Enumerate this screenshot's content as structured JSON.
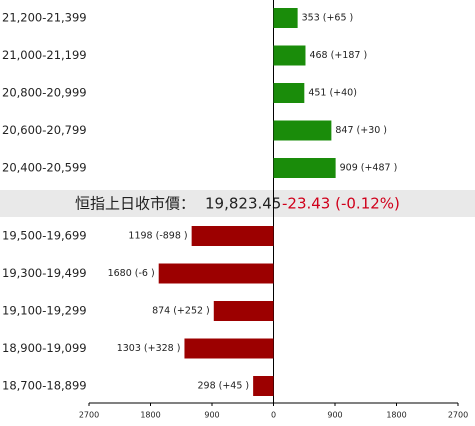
{
  "chart_data": {
    "type": "bar",
    "banner": {
      "label": "恒指上日收市價：",
      "value": "19,823.45",
      "change": "-23.43 (-0.12%)",
      "change_color": "#d0001b"
    },
    "series": [
      {
        "color": "#1a8c0a",
        "direction": "right",
        "categories": [
          "21,200-21,399",
          "21,000-21,199",
          "20,800-20,999",
          "20,600-20,799",
          "20,400-20,599"
        ],
        "values": [
          353,
          468,
          451,
          847,
          909
        ],
        "value_labels": [
          "353 (+65 )",
          "468 (+187 )",
          "451 (+40)",
          "847 (+30 )",
          "909 (+487 )"
        ]
      },
      {
        "color": "#9c0000",
        "direction": "left",
        "categories": [
          "19,500-19,699",
          "19,300-19,499",
          "19,100-19,299",
          "18,900-19,099",
          "18,700-18,899"
        ],
        "values": [
          1198,
          1680,
          874,
          1303,
          298
        ],
        "value_labels": [
          "1198 (-898 )",
          "1680 (-6 )",
          "874 (+252 )",
          "1303 (+328 )",
          "298 (+45 )"
        ]
      }
    ],
    "xlim": [
      -2700,
      2700
    ],
    "xticks": [
      {
        "value": -2700,
        "label": "2700"
      },
      {
        "value": -1800,
        "label": "1800"
      },
      {
        "value": -900,
        "label": "900"
      },
      0,
      900,
      1800,
      2700
    ]
  }
}
